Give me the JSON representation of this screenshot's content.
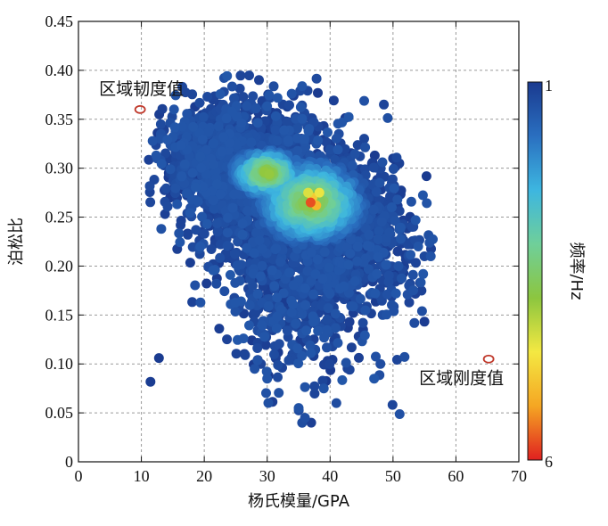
{
  "chart_data": {
    "type": "scatter",
    "title": "",
    "xlabel": "杨氏模量/GPA",
    "ylabel": "泊松比",
    "xlim": [
      0,
      70
    ],
    "ylim": [
      0,
      0.45
    ],
    "x_ticks": [
      "0",
      "10",
      "20",
      "30",
      "40",
      "50",
      "60",
      "70"
    ],
    "y_ticks": [
      "0",
      "0.05",
      "0.10",
      "0.15",
      "0.20",
      "0.25",
      "0.30",
      "0.35",
      "0.40",
      "0.45"
    ],
    "grid": true,
    "colorbar": {
      "label": "频率/Hz",
      "top_label": "1",
      "bottom_label": "6",
      "colors": [
        "#1a3a8f",
        "#2a6fc0",
        "#3db6e0",
        "#6fcf9a",
        "#8cc63f",
        "#f4e842",
        "#f5a623",
        "#e02020"
      ]
    },
    "annotations": [
      {
        "text": "区域韧度值",
        "x": 9.8,
        "y": 0.36,
        "color": "#c0392b"
      },
      {
        "text": "区域刚度值",
        "x": 65.2,
        "y": 0.105,
        "color": "#c0392b"
      }
    ],
    "cluster": {
      "description_x_range": [
        12,
        55
      ],
      "description_y_range": [
        0.04,
        0.39
      ],
      "core": {
        "x": 37,
        "y": 0.265
      }
    }
  }
}
